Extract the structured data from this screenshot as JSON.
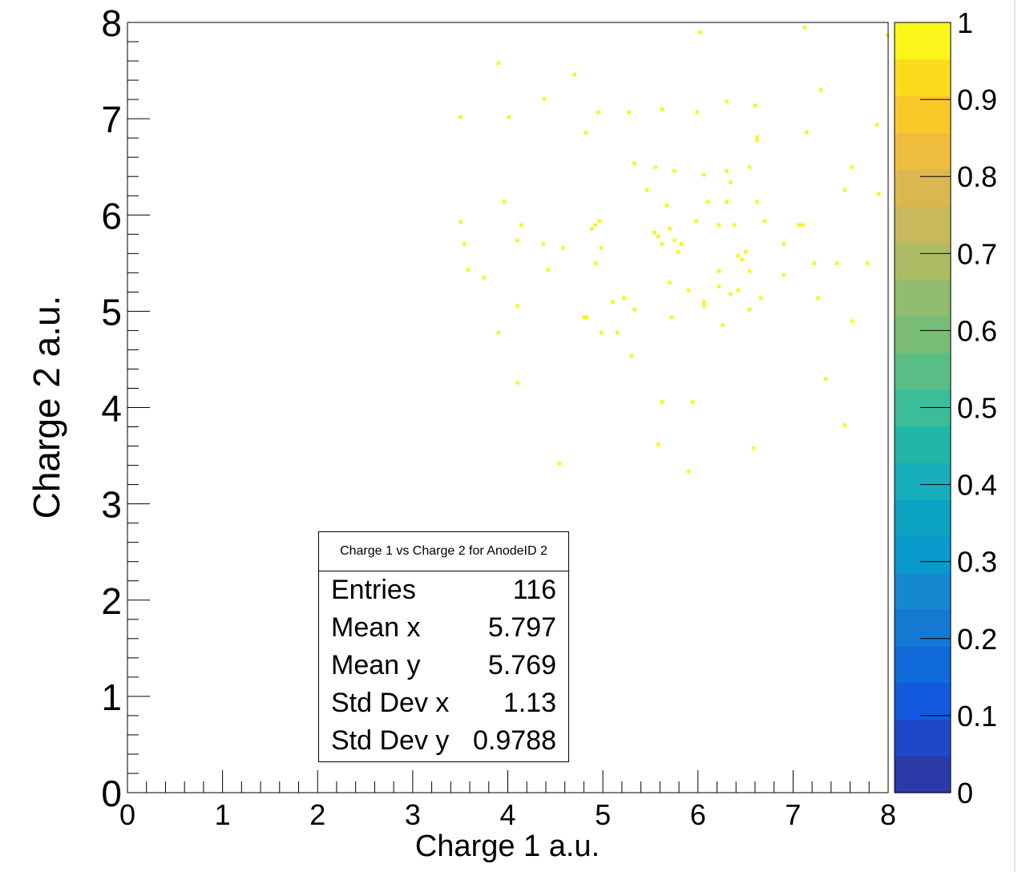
{
  "chart_data": {
    "type": "heatmap",
    "title": "",
    "xlabel": "Charge 1 a.u.",
    "ylabel": "Charge 2 a.u.",
    "xlim": [
      0,
      8
    ],
    "ylim": [
      0,
      8
    ],
    "zlim": [
      0,
      1
    ],
    "x_ticks": [
      "0",
      "1",
      "2",
      "3",
      "4",
      "5",
      "6",
      "7",
      "8"
    ],
    "y_ticks": [
      "0",
      "1",
      "2",
      "3",
      "4",
      "5",
      "6",
      "7",
      "8"
    ],
    "z_ticks": [
      "0",
      "0.1",
      "0.2",
      "0.3",
      "0.4",
      "0.5",
      "0.6",
      "0.7",
      "0.8",
      "0.9",
      "1"
    ],
    "point_value": 1,
    "points": [
      [
        3.5,
        7.02
      ],
      [
        3.9,
        7.58
      ],
      [
        4.01,
        7.02
      ],
      [
        4.38,
        7.21
      ],
      [
        4.7,
        7.46
      ],
      [
        4.82,
        6.86
      ],
      [
        4.95,
        7.07
      ],
      [
        5.27,
        7.07
      ],
      [
        5.62,
        7.1
      ],
      [
        5.99,
        7.07
      ],
      [
        6.02,
        7.9
      ],
      [
        6.3,
        7.18
      ],
      [
        6.6,
        7.14
      ],
      [
        6.62,
        6.81
      ],
      [
        6.62,
        6.78
      ],
      [
        7.12,
        7.95
      ],
      [
        7.14,
        6.86
      ],
      [
        7.29,
        7.3
      ],
      [
        7.88,
        6.94
      ],
      [
        7.99,
        7.87
      ],
      [
        3.5,
        5.93
      ],
      [
        3.54,
        5.7
      ],
      [
        3.58,
        5.43
      ],
      [
        3.75,
        5.35
      ],
      [
        3.9,
        4.78
      ],
      [
        3.96,
        6.14
      ],
      [
        4.1,
        5.74
      ],
      [
        4.1,
        5.06
      ],
      [
        4.14,
        5.9
      ],
      [
        4.37,
        5.7
      ],
      [
        4.42,
        5.43
      ],
      [
        4.58,
        5.66
      ],
      [
        4.8,
        4.94
      ],
      [
        4.83,
        4.94
      ],
      [
        4.88,
        5.86
      ],
      [
        4.92,
        5.9
      ],
      [
        4.92,
        5.5
      ],
      [
        4.96,
        5.94
      ],
      [
        4.98,
        5.66
      ],
      [
        4.98,
        4.78
      ],
      [
        5.1,
        5.1
      ],
      [
        5.15,
        4.78
      ],
      [
        5.22,
        5.14
      ],
      [
        5.3,
        4.54
      ],
      [
        5.33,
        6.54
      ],
      [
        5.33,
        5.02
      ],
      [
        5.46,
        6.26
      ],
      [
        5.54,
        5.82
      ],
      [
        5.55,
        6.5
      ],
      [
        5.58,
        5.78
      ],
      [
        5.62,
        5.7
      ],
      [
        5.67,
        6.1
      ],
      [
        5.7,
        5.86
      ],
      [
        5.7,
        5.3
      ],
      [
        5.72,
        4.94
      ],
      [
        5.75,
        6.46
      ],
      [
        5.75,
        5.74
      ],
      [
        5.79,
        5.62
      ],
      [
        5.82,
        5.7
      ],
      [
        5.9,
        5.22
      ],
      [
        5.98,
        5.94
      ],
      [
        6.06,
        6.42
      ],
      [
        6.06,
        5.1
      ],
      [
        6.06,
        5.06
      ],
      [
        6.1,
        6.14
      ],
      [
        6.22,
        5.9
      ],
      [
        6.22,
        5.42
      ],
      [
        6.22,
        5.26
      ],
      [
        6.26,
        4.86
      ],
      [
        6.3,
        6.46
      ],
      [
        6.3,
        6.14
      ],
      [
        6.34,
        5.18
      ],
      [
        6.34,
        6.34
      ],
      [
        6.38,
        5.9
      ],
      [
        6.42,
        5.58
      ],
      [
        6.42,
        5.22
      ],
      [
        6.46,
        5.54
      ],
      [
        6.5,
        5.62
      ],
      [
        6.54,
        6.5
      ],
      [
        6.54,
        5.42
      ],
      [
        6.54,
        5.02
      ],
      [
        6.62,
        6.14
      ],
      [
        6.66,
        5.14
      ],
      [
        6.7,
        5.94
      ],
      [
        6.9,
        5.7
      ],
      [
        6.9,
        5.38
      ],
      [
        7.06,
        5.9
      ],
      [
        7.1,
        5.9
      ],
      [
        7.22,
        5.5
      ],
      [
        7.26,
        5.14
      ],
      [
        7.46,
        5.5
      ],
      [
        7.54,
        6.26
      ],
      [
        7.62,
        6.5
      ],
      [
        7.62,
        4.9
      ],
      [
        7.78,
        5.5
      ],
      [
        7.9,
        6.22
      ],
      [
        4.1,
        4.26
      ],
      [
        4.54,
        3.42
      ],
      [
        5.58,
        3.62
      ],
      [
        5.62,
        4.06
      ],
      [
        5.9,
        3.34
      ],
      [
        5.94,
        4.06
      ],
      [
        6.58,
        3.58
      ],
      [
        7.34,
        4.3
      ],
      [
        7.54,
        3.82
      ]
    ]
  },
  "stats": {
    "title": "Charge 1 vs Charge 2 for AnodeID 2",
    "rows": [
      {
        "label": "Entries",
        "value": "116"
      },
      {
        "label": "Mean x",
        "value": "5.797"
      },
      {
        "label": "Mean y",
        "value": "5.769"
      },
      {
        "label": "Std Dev x",
        "value": "1.13"
      },
      {
        "label": "Std Dev y",
        "value": "0.9788"
      }
    ]
  },
  "colors": {
    "point": "#fbf51a",
    "palette": [
      "#2a3aa8",
      "#1f48c6",
      "#1359dd",
      "#106ad9",
      "#1479d3",
      "#1589cf",
      "#0a99cc",
      "#0ca3c3",
      "#18aebb",
      "#22b6aa",
      "#3abd98",
      "#5bbd86",
      "#78bc78",
      "#92bc6e",
      "#adbc64",
      "#c7b95c",
      "#dbb84f",
      "#eebd3d",
      "#f9c828",
      "#fadc1c",
      "#fbf51a"
    ]
  }
}
